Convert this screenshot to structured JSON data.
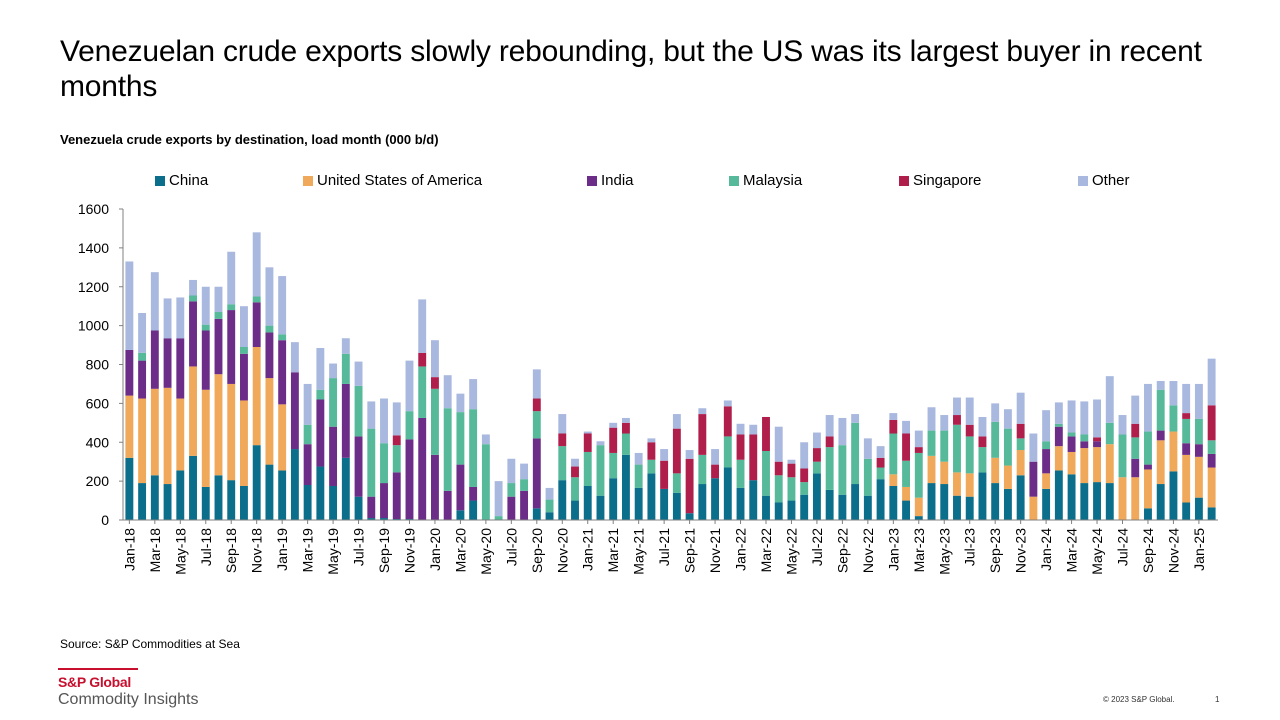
{
  "header": {
    "title": "Venezuelan crude exports slowly rebounding, but the US was its largest buyer in recent months",
    "subtitle": "Venezuela crude exports by destination, load month (000 b/d)"
  },
  "footer": {
    "source": "Source: S&P Commodities at Sea",
    "logo_top": "S&P Global",
    "logo_bottom": "Commodity Insights",
    "copyright": "© 2023 S&P Global.",
    "page_number": "1"
  },
  "colors": {
    "China": "#0b6e8a",
    "United States of America": "#f0a85a",
    "India": "#6b2d87",
    "Malaysia": "#55b99a",
    "Singapore": "#b01e4c",
    "Other": "#a9b8de"
  },
  "chart_data": {
    "type": "bar",
    "stacked": true,
    "title": "Venezuela crude exports by destination, load month (000 b/d)",
    "ylim": [
      0,
      1600
    ],
    "yticks": [
      0,
      200,
      400,
      600,
      800,
      1000,
      1200,
      1400,
      1600
    ],
    "legend_position": "top",
    "grid": false,
    "categories": [
      "Jan-18",
      "Feb-18",
      "Mar-18",
      "Apr-18",
      "May-18",
      "Jun-18",
      "Jul-18",
      "Aug-18",
      "Sep-18",
      "Oct-18",
      "Nov-18",
      "Dec-18",
      "Jan-19",
      "Feb-19",
      "Mar-19",
      "Apr-19",
      "May-19",
      "Jun-19",
      "Jul-19",
      "Aug-19",
      "Sep-19",
      "Oct-19",
      "Nov-19",
      "Dec-19",
      "Jan-20",
      "Feb-20",
      "Mar-20",
      "Apr-20",
      "May-20",
      "Jun-20",
      "Jul-20",
      "Aug-20",
      "Sep-20",
      "Oct-20",
      "Nov-20",
      "Dec-20",
      "Jan-21",
      "Feb-21",
      "Mar-21",
      "Apr-21",
      "May-21",
      "Jun-21",
      "Jul-21",
      "Aug-21",
      "Sep-21",
      "Oct-21",
      "Nov-21",
      "Dec-21",
      "Jan-22",
      "Feb-22",
      "Mar-22",
      "Apr-22",
      "May-22",
      "Jun-22",
      "Jul-22",
      "Aug-22",
      "Sep-22",
      "Oct-22",
      "Nov-22",
      "Dec-22",
      "Jan-23",
      "Feb-23",
      "Mar-23",
      "Apr-23",
      "May-23",
      "Jun-23",
      "Jul-23",
      "Aug-23",
      "Sep-23",
      "Oct-23",
      "Nov-23",
      "Dec-23",
      "Jan-24",
      "Feb-24",
      "Mar-24",
      "Apr-24",
      "May-24",
      "Jun-24",
      "Jul-24",
      "Aug-24",
      "Sep-24",
      "Oct-24",
      "Nov-24",
      "Dec-24",
      "Jan-25",
      "Feb-25"
    ],
    "xtick_labels": [
      "Jan-18",
      "",
      "Mar-18",
      "",
      "May-18",
      "",
      "Jul-18",
      "",
      "Sep-18",
      "",
      "Nov-18",
      "",
      "Jan-19",
      "",
      "Mar-19",
      "",
      "May-19",
      "",
      "Jul-19",
      "",
      "Sep-19",
      "",
      "Nov-19",
      "",
      "Jan-20",
      "",
      "Mar-20",
      "",
      "May-20",
      "",
      "Jul-20",
      "",
      "Sep-20",
      "",
      "Nov-20",
      "",
      "Jan-21",
      "",
      "Mar-21",
      "",
      "May-21",
      "",
      "Jul-21",
      "",
      "Sep-21",
      "",
      "Nov-21",
      "",
      "Jan-22",
      "",
      "Mar-22",
      "",
      "May-22",
      "",
      "Jul-22",
      "",
      "Sep-22",
      "",
      "Nov-22",
      "",
      "Jan-23",
      "",
      "Mar-23",
      "",
      "May-23",
      "",
      "Jul-23",
      "",
      "Sep-23",
      "",
      "Nov-23",
      "",
      "Jan-24",
      "",
      "Mar-24",
      "",
      "May-24",
      "",
      "Jul-24",
      "",
      "Sep-24",
      "",
      "Nov-24",
      "",
      "Jan-25",
      ""
    ],
    "series": [
      {
        "name": "China",
        "values": [
          320,
          190,
          230,
          185,
          255,
          330,
          170,
          230,
          205,
          175,
          385,
          285,
          255,
          365,
          180,
          275,
          175,
          320,
          120,
          10,
          10,
          5,
          5,
          0,
          0,
          0,
          50,
          100,
          0,
          0,
          0,
          0,
          60,
          40,
          205,
          100,
          175,
          125,
          215,
          335,
          165,
          240,
          160,
          140,
          35,
          185,
          215,
          270,
          165,
          205,
          125,
          90,
          100,
          130,
          240,
          155,
          130,
          185,
          125,
          210,
          175,
          100,
          20,
          190,
          185,
          125,
          120,
          245,
          190,
          160,
          230,
          0,
          160,
          255,
          235,
          190,
          195,
          190,
          0,
          0,
          60,
          185,
          250,
          90,
          115,
          65
        ]
      },
      {
        "name": "United States of America",
        "values": [
          320,
          435,
          445,
          495,
          370,
          460,
          500,
          520,
          495,
          440,
          505,
          445,
          340,
          0,
          0,
          0,
          0,
          0,
          0,
          0,
          0,
          0,
          0,
          0,
          0,
          0,
          0,
          0,
          0,
          0,
          0,
          0,
          0,
          0,
          0,
          0,
          0,
          0,
          0,
          0,
          0,
          0,
          0,
          0,
          0,
          0,
          0,
          0,
          0,
          0,
          0,
          0,
          0,
          0,
          0,
          0,
          0,
          0,
          0,
          0,
          60,
          70,
          95,
          140,
          115,
          120,
          120,
          0,
          130,
          120,
          130,
          120,
          80,
          125,
          115,
          180,
          180,
          200,
          220,
          220,
          200,
          225,
          205,
          245,
          210,
          205
        ]
      },
      {
        "name": "India",
        "values": [
          235,
          195,
          300,
          255,
          310,
          335,
          305,
          285,
          380,
          240,
          230,
          235,
          330,
          395,
          210,
          345,
          305,
          380,
          310,
          110,
          180,
          240,
          410,
          525,
          335,
          150,
          235,
          70,
          0,
          0,
          120,
          150,
          360,
          0,
          0,
          0,
          0,
          0,
          0,
          0,
          0,
          0,
          0,
          0,
          0,
          0,
          0,
          0,
          0,
          0,
          0,
          0,
          0,
          0,
          0,
          0,
          0,
          0,
          0,
          0,
          0,
          0,
          0,
          0,
          0,
          0,
          0,
          0,
          0,
          0,
          0,
          180,
          125,
          100,
          80,
          35,
          30,
          0,
          0,
          95,
          25,
          50,
          0,
          60,
          65,
          70
        ]
      },
      {
        "name": "Malaysia",
        "values": [
          0,
          40,
          0,
          0,
          0,
          30,
          30,
          35,
          30,
          35,
          30,
          35,
          30,
          0,
          100,
          50,
          250,
          155,
          260,
          350,
          205,
          140,
          145,
          265,
          340,
          425,
          270,
          400,
          390,
          20,
          70,
          60,
          140,
          65,
          175,
          120,
          175,
          260,
          130,
          110,
          120,
          70,
          0,
          100,
          0,
          150,
          0,
          160,
          145,
          0,
          230,
          140,
          120,
          65,
          60,
          220,
          255,
          315,
          190,
          60,
          210,
          135,
          230,
          130,
          160,
          245,
          190,
          130,
          185,
          190,
          60,
          0,
          40,
          15,
          20,
          35,
          0,
          110,
          220,
          110,
          170,
          210,
          135,
          125,
          130,
          70
        ]
      },
      {
        "name": "Singapore",
        "values": [
          0,
          0,
          0,
          0,
          0,
          0,
          0,
          0,
          0,
          0,
          0,
          0,
          0,
          0,
          0,
          0,
          0,
          0,
          0,
          0,
          0,
          50,
          0,
          70,
          60,
          0,
          0,
          0,
          0,
          0,
          0,
          0,
          65,
          0,
          65,
          55,
          95,
          0,
          130,
          55,
          0,
          90,
          145,
          230,
          280,
          210,
          70,
          155,
          130,
          235,
          175,
          70,
          70,
          70,
          70,
          55,
          0,
          0,
          0,
          50,
          70,
          140,
          30,
          0,
          0,
          50,
          60,
          55,
          0,
          0,
          75,
          0,
          0,
          0,
          0,
          0,
          20,
          0,
          0,
          70,
          0,
          0,
          0,
          30,
          0,
          180
        ]
      },
      {
        "name": "Other",
        "values": [
          455,
          205,
          300,
          205,
          210,
          80,
          195,
          130,
          270,
          210,
          330,
          300,
          300,
          155,
          210,
          215,
          75,
          80,
          125,
          140,
          230,
          170,
          260,
          275,
          190,
          170,
          95,
          155,
          50,
          180,
          125,
          80,
          150,
          60,
          100,
          40,
          10,
          20,
          25,
          25,
          60,
          20,
          60,
          75,
          45,
          30,
          80,
          30,
          55,
          50,
          0,
          180,
          20,
          135,
          80,
          110,
          140,
          45,
          105,
          60,
          35,
          65,
          85,
          120,
          80,
          90,
          140,
          100,
          95,
          100,
          160,
          145,
          160,
          110,
          165,
          170,
          195,
          240,
          100,
          145,
          245,
          45,
          125,
          150,
          180,
          240
        ]
      }
    ]
  }
}
